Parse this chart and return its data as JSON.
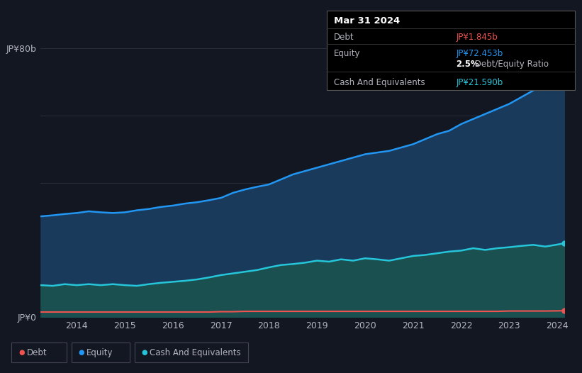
{
  "background_color": "#131722",
  "plot_bg_color": "#131722",
  "years": [
    2013.25,
    2013.5,
    2013.75,
    2014.0,
    2014.25,
    2014.5,
    2014.75,
    2015.0,
    2015.25,
    2015.5,
    2015.75,
    2016.0,
    2016.25,
    2016.5,
    2016.75,
    2017.0,
    2017.25,
    2017.5,
    2017.75,
    2018.0,
    2018.25,
    2018.5,
    2018.75,
    2019.0,
    2019.25,
    2019.5,
    2019.75,
    2020.0,
    2020.25,
    2020.5,
    2020.75,
    2021.0,
    2021.25,
    2021.5,
    2021.75,
    2022.0,
    2022.25,
    2022.5,
    2022.75,
    2023.0,
    2023.25,
    2023.5,
    2023.75,
    2024.0,
    2024.15
  ],
  "equity": [
    30.0,
    30.3,
    30.7,
    31.0,
    31.5,
    31.2,
    31.0,
    31.2,
    31.8,
    32.2,
    32.8,
    33.2,
    33.8,
    34.2,
    34.8,
    35.5,
    37.0,
    38.0,
    38.8,
    39.5,
    41.0,
    42.5,
    43.5,
    44.5,
    45.5,
    46.5,
    47.5,
    48.5,
    49.0,
    49.5,
    50.5,
    51.5,
    53.0,
    54.5,
    55.5,
    57.5,
    59.0,
    60.5,
    62.0,
    63.5,
    65.5,
    67.5,
    70.5,
    72.453,
    73.5
  ],
  "cash": [
    9.5,
    9.3,
    9.8,
    9.5,
    9.8,
    9.5,
    9.8,
    9.5,
    9.3,
    9.8,
    10.2,
    10.5,
    10.8,
    11.2,
    11.8,
    12.5,
    13.0,
    13.5,
    14.0,
    14.8,
    15.5,
    15.8,
    16.2,
    16.8,
    16.5,
    17.2,
    16.8,
    17.5,
    17.2,
    16.8,
    17.5,
    18.2,
    18.5,
    19.0,
    19.5,
    19.8,
    20.5,
    20.0,
    20.5,
    20.8,
    21.2,
    21.5,
    21.0,
    21.59,
    22.0
  ],
  "debt": [
    1.5,
    1.5,
    1.5,
    1.5,
    1.5,
    1.5,
    1.5,
    1.5,
    1.5,
    1.5,
    1.5,
    1.5,
    1.5,
    1.5,
    1.5,
    1.6,
    1.6,
    1.7,
    1.7,
    1.7,
    1.7,
    1.7,
    1.7,
    1.7,
    1.7,
    1.7,
    1.7,
    1.7,
    1.7,
    1.7,
    1.7,
    1.7,
    1.7,
    1.7,
    1.7,
    1.7,
    1.7,
    1.7,
    1.7,
    1.8,
    1.8,
    1.8,
    1.8,
    1.845,
    1.9
  ],
  "equity_color": "#2196f3",
  "cash_color": "#26c6da",
  "debt_color": "#ef5350",
  "fill_equity_color": "#1a3a5c",
  "fill_cash_color": "#1a5050",
  "grid_color": "#2a2e39",
  "text_color": "#b2b5be",
  "ylim": [
    0,
    80
  ],
  "yticks": [
    0,
    80
  ],
  "ytick_labels": [
    "JP¥0",
    "JP¥80b"
  ],
  "xticks": [
    2014,
    2015,
    2016,
    2017,
    2018,
    2019,
    2020,
    2021,
    2022,
    2023,
    2024
  ],
  "tooltip_date": "Mar 31 2024",
  "tooltip_debt_label": "Debt",
  "tooltip_debt_value": "JP¥1.845b",
  "tooltip_equity_label": "Equity",
  "tooltip_equity_value": "JP¥72.453b",
  "tooltip_ratio": "2.5%",
  "tooltip_ratio_text": " Debt/Equity Ratio",
  "tooltip_cash_label": "Cash And Equivalents",
  "tooltip_cash_value": "JP¥21.590b",
  "legend_debt": "Debt",
  "legend_equity": "Equity",
  "legend_cash": "Cash And Equivalents"
}
